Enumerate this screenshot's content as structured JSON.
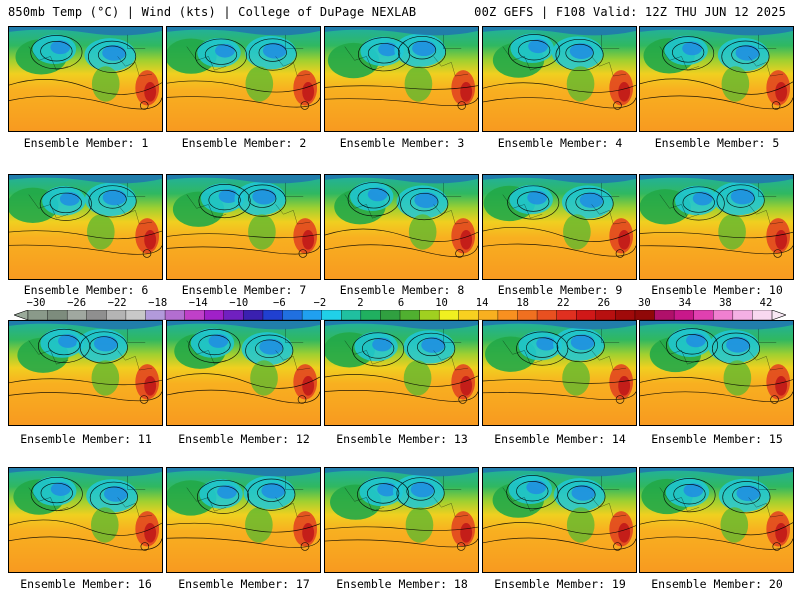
{
  "header": {
    "left": "850mb Temp (°C) | Wind (kts) | College of DuPage NEXLAB",
    "right": "00Z GEFS | F108 Valid: 12Z THU JUN 12 2025"
  },
  "members": [
    "Ensemble Member: 1",
    "Ensemble Member: 2",
    "Ensemble Member: 3",
    "Ensemble Member: 4",
    "Ensemble Member: 5",
    "Ensemble Member: 6",
    "Ensemble Member: 7",
    "Ensemble Member: 8",
    "Ensemble Member: 9",
    "Ensemble Member: 10",
    "Ensemble Member: 11",
    "Ensemble Member: 12",
    "Ensemble Member: 13",
    "Ensemble Member: 14",
    "Ensemble Member: 15",
    "Ensemble Member: 16",
    "Ensemble Member: 17",
    "Ensemble Member: 18",
    "Ensemble Member: 19",
    "Ensemble Member: 20"
  ],
  "colorbar": {
    "labels": [
      "-30",
      "-26",
      "-22",
      "-18",
      "-14",
      "-10",
      "-6",
      "-2",
      "2",
      "6",
      "10",
      "14",
      "18",
      "22",
      "26",
      "30",
      "34",
      "38",
      "42"
    ],
    "colors": [
      "#8a9a8a",
      "#7d8c7d",
      "#a0a8a0",
      "#8f8f8f",
      "#b4b4b4",
      "#c8c8c8",
      "#b29adb",
      "#b36ed0",
      "#c040c8",
      "#a020c8",
      "#7020c0",
      "#3a20b0",
      "#2040d0",
      "#2070e0",
      "#20a0f0",
      "#20d0e8",
      "#20c0a0",
      "#20b060",
      "#30a040",
      "#50b030",
      "#a0d020",
      "#f0f020",
      "#f8d020",
      "#f8b020",
      "#f89020",
      "#f07020",
      "#e85020",
      "#e03020",
      "#d01818",
      "#b81010",
      "#a00a0a",
      "#900808",
      "#b0106a",
      "#c8188a",
      "#e040b0",
      "#f080d0",
      "#f4b0e4",
      "#f8d8f0"
    ]
  }
}
